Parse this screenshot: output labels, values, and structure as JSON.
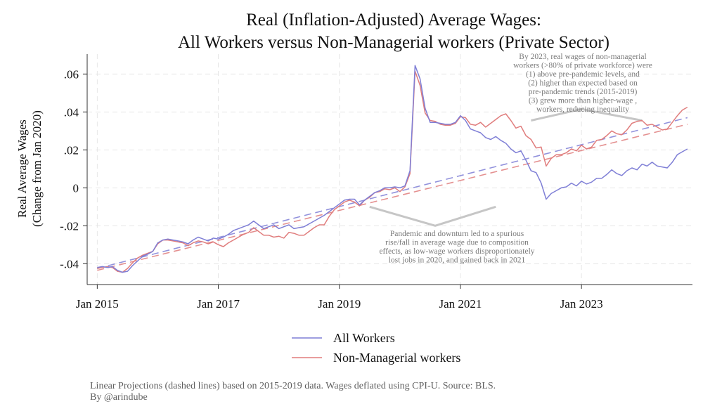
{
  "chart_data": {
    "type": "line",
    "title_lines": [
      "Real (Inflation-Adjusted) Average Wages:",
      "All Workers versus Non-Managerial workers (Private Sector)"
    ],
    "ylabel_lines": [
      "Real Average Wages",
      "(Change from Jan 2020)"
    ],
    "x_ticks": [
      "Jan 2015",
      "Jan 2017",
      "Jan 2019",
      "Jan 2021",
      "Jan 2023"
    ],
    "y_ticks": [
      ".06",
      ".04",
      ".02",
      "0",
      "-.02",
      "-.04"
    ],
    "xlim": [
      "2014-11",
      "2024-11"
    ],
    "ylim": [
      -0.051,
      0.0705
    ],
    "grid": true,
    "series": [
      {
        "name": "All Workers",
        "color": "#7f7fd6",
        "points": [
          [
            "2015-01",
            -0.042
          ],
          [
            "2015-02",
            -0.0415
          ],
          [
            "2015-03",
            -0.042
          ],
          [
            "2015-04",
            -0.0415
          ],
          [
            "2015-05",
            -0.0435
          ],
          [
            "2015-06",
            -0.0445
          ],
          [
            "2015-07",
            -0.044
          ],
          [
            "2015-08",
            -0.041
          ],
          [
            "2015-09",
            -0.0385
          ],
          [
            "2015-10",
            -0.036
          ],
          [
            "2015-11",
            -0.035
          ],
          [
            "2015-12",
            -0.0335
          ],
          [
            "2016-01",
            -0.029
          ],
          [
            "2016-02",
            -0.0275
          ],
          [
            "2016-03",
            -0.027
          ],
          [
            "2016-04",
            -0.0275
          ],
          [
            "2016-05",
            -0.028
          ],
          [
            "2016-06",
            -0.0285
          ],
          [
            "2016-07",
            -0.0295
          ],
          [
            "2016-08",
            -0.0275
          ],
          [
            "2016-09",
            -0.026
          ],
          [
            "2016-10",
            -0.027
          ],
          [
            "2016-11",
            -0.028
          ],
          [
            "2016-12",
            -0.0265
          ],
          [
            "2017-01",
            -0.027
          ],
          [
            "2017-02",
            -0.026
          ],
          [
            "2017-03",
            -0.0245
          ],
          [
            "2017-04",
            -0.0225
          ],
          [
            "2017-05",
            -0.0215
          ],
          [
            "2017-06",
            -0.0205
          ],
          [
            "2017-07",
            -0.0195
          ],
          [
            "2017-08",
            -0.0175
          ],
          [
            "2017-09",
            -0.0195
          ],
          [
            "2017-10",
            -0.0215
          ],
          [
            "2017-11",
            -0.0205
          ],
          [
            "2017-12",
            -0.0195
          ],
          [
            "2018-01",
            -0.0215
          ],
          [
            "2018-02",
            -0.0205
          ],
          [
            "2018-03",
            -0.0195
          ],
          [
            "2018-04",
            -0.0215
          ],
          [
            "2018-05",
            -0.021
          ],
          [
            "2018-06",
            -0.0205
          ],
          [
            "2018-07",
            -0.019
          ],
          [
            "2018-08",
            -0.0175
          ],
          [
            "2018-09",
            -0.016
          ],
          [
            "2018-10",
            -0.0145
          ],
          [
            "2018-11",
            -0.0125
          ],
          [
            "2018-12",
            -0.0105
          ],
          [
            "2019-01",
            -0.0085
          ],
          [
            "2019-02",
            -0.0065
          ],
          [
            "2019-03",
            -0.006
          ],
          [
            "2019-04",
            -0.006
          ],
          [
            "2019-05",
            -0.009
          ],
          [
            "2019-06",
            -0.0065
          ],
          [
            "2019-07",
            -0.0045
          ],
          [
            "2019-08",
            -0.0025
          ],
          [
            "2019-09",
            -0.0015
          ],
          [
            "2019-10",
            0.0
          ],
          [
            "2019-11",
            0.0
          ],
          [
            "2019-12",
            0.0005
          ],
          [
            "2020-01",
            0.0
          ],
          [
            "2020-02",
            0.001
          ],
          [
            "2020-03",
            0.009
          ],
          [
            "2020-04",
            0.0645
          ],
          [
            "2020-05",
            0.0575
          ],
          [
            "2020-06",
            0.042
          ],
          [
            "2020-07",
            0.0345
          ],
          [
            "2020-08",
            0.0345
          ],
          [
            "2020-09",
            0.034
          ],
          [
            "2020-10",
            0.0335
          ],
          [
            "2020-11",
            0.0335
          ],
          [
            "2020-12",
            0.0345
          ],
          [
            "2021-01",
            0.038
          ],
          [
            "2021-02",
            0.0355
          ],
          [
            "2021-03",
            0.031
          ],
          [
            "2021-04",
            0.03
          ],
          [
            "2021-05",
            0.029
          ],
          [
            "2021-06",
            0.0265
          ],
          [
            "2021-07",
            0.0255
          ],
          [
            "2021-08",
            0.027
          ],
          [
            "2021-09",
            0.025
          ],
          [
            "2021-10",
            0.0235
          ],
          [
            "2021-11",
            0.0205
          ],
          [
            "2021-12",
            0.0185
          ],
          [
            "2022-01",
            0.0195
          ],
          [
            "2022-02",
            0.0145
          ],
          [
            "2022-03",
            0.009
          ],
          [
            "2022-04",
            0.008
          ],
          [
            "2022-05",
            0.0025
          ],
          [
            "2022-06",
            -0.006
          ],
          [
            "2022-07",
            -0.003
          ],
          [
            "2022-08",
            -0.0015
          ],
          [
            "2022-09",
            0.0
          ],
          [
            "2022-10",
            0.0005
          ],
          [
            "2022-11",
            0.0025
          ],
          [
            "2022-12",
            0.001
          ],
          [
            "2023-01",
            0.0035
          ],
          [
            "2023-02",
            0.002
          ],
          [
            "2023-03",
            0.003
          ],
          [
            "2023-04",
            0.005
          ],
          [
            "2023-05",
            0.005
          ],
          [
            "2023-06",
            0.007
          ],
          [
            "2023-07",
            0.0095
          ],
          [
            "2023-08",
            0.0075
          ],
          [
            "2023-09",
            0.0065
          ],
          [
            "2023-10",
            0.009
          ],
          [
            "2023-11",
            0.0105
          ],
          [
            "2023-12",
            0.0095
          ],
          [
            "2024-01",
            0.0125
          ],
          [
            "2024-02",
            0.0115
          ],
          [
            "2024-03",
            0.0135
          ],
          [
            "2024-04",
            0.0115
          ],
          [
            "2024-05",
            0.011
          ],
          [
            "2024-06",
            0.0105
          ],
          [
            "2024-07",
            0.0135
          ],
          [
            "2024-08",
            0.0175
          ],
          [
            "2024-09",
            0.019
          ],
          [
            "2024-10",
            0.0205
          ]
        ],
        "projection": [
          [
            "2015-01",
            -0.0425
          ],
          [
            "2024-10",
            0.037
          ]
        ]
      },
      {
        "name": "Non-Managerial workers",
        "color": "#e07d7d",
        "points": [
          [
            "2015-01",
            -0.0425
          ],
          [
            "2015-02",
            -0.042
          ],
          [
            "2015-03",
            -0.0415
          ],
          [
            "2015-04",
            -0.042
          ],
          [
            "2015-05",
            -0.044
          ],
          [
            "2015-06",
            -0.0445
          ],
          [
            "2015-07",
            -0.0425
          ],
          [
            "2015-08",
            -0.0395
          ],
          [
            "2015-09",
            -0.037
          ],
          [
            "2015-10",
            -0.0355
          ],
          [
            "2015-11",
            -0.0345
          ],
          [
            "2015-12",
            -0.0335
          ],
          [
            "2016-01",
            -0.0295
          ],
          [
            "2016-02",
            -0.0275
          ],
          [
            "2016-03",
            -0.0275
          ],
          [
            "2016-04",
            -0.028
          ],
          [
            "2016-05",
            -0.0285
          ],
          [
            "2016-06",
            -0.029
          ],
          [
            "2016-07",
            -0.0305
          ],
          [
            "2016-08",
            -0.029
          ],
          [
            "2016-09",
            -0.028
          ],
          [
            "2016-10",
            -0.0285
          ],
          [
            "2016-11",
            -0.0295
          ],
          [
            "2016-12",
            -0.0285
          ],
          [
            "2017-01",
            -0.03
          ],
          [
            "2017-02",
            -0.031
          ],
          [
            "2017-03",
            -0.029
          ],
          [
            "2017-04",
            -0.0275
          ],
          [
            "2017-05",
            -0.026
          ],
          [
            "2017-06",
            -0.0245
          ],
          [
            "2017-07",
            -0.0235
          ],
          [
            "2017-08",
            -0.021
          ],
          [
            "2017-09",
            -0.023
          ],
          [
            "2017-10",
            -0.025
          ],
          [
            "2017-11",
            -0.025
          ],
          [
            "2017-12",
            -0.026
          ],
          [
            "2018-01",
            -0.0255
          ],
          [
            "2018-02",
            -0.0265
          ],
          [
            "2018-03",
            -0.0235
          ],
          [
            "2018-04",
            -0.024
          ],
          [
            "2018-05",
            -0.025
          ],
          [
            "2018-06",
            -0.025
          ],
          [
            "2018-07",
            -0.023
          ],
          [
            "2018-08",
            -0.021
          ],
          [
            "2018-09",
            -0.0195
          ],
          [
            "2018-10",
            -0.0195
          ],
          [
            "2018-11",
            -0.015
          ],
          [
            "2018-12",
            -0.0115
          ],
          [
            "2019-01",
            -0.0095
          ],
          [
            "2019-02",
            -0.0075
          ],
          [
            "2019-03",
            -0.0065
          ],
          [
            "2019-04",
            -0.0075
          ],
          [
            "2019-05",
            -0.0095
          ],
          [
            "2019-06",
            -0.0065
          ],
          [
            "2019-07",
            -0.005
          ],
          [
            "2019-08",
            -0.0025
          ],
          [
            "2019-09",
            -0.002
          ],
          [
            "2019-10",
            -0.0005
          ],
          [
            "2019-11",
            -0.001
          ],
          [
            "2019-12",
            0.0
          ],
          [
            "2020-01",
            -0.002
          ],
          [
            "2020-02",
            0.0005
          ],
          [
            "2020-03",
            0.0075
          ],
          [
            "2020-04",
            0.0615
          ],
          [
            "2020-05",
            0.054
          ],
          [
            "2020-06",
            0.0395
          ],
          [
            "2020-07",
            0.0355
          ],
          [
            "2020-08",
            0.035
          ],
          [
            "2020-09",
            0.0335
          ],
          [
            "2020-10",
            0.033
          ],
          [
            "2020-11",
            0.033
          ],
          [
            "2020-12",
            0.034
          ],
          [
            "2021-01",
            0.0375
          ],
          [
            "2021-02",
            0.037
          ],
          [
            "2021-03",
            0.0335
          ],
          [
            "2021-04",
            0.033
          ],
          [
            "2021-05",
            0.0345
          ],
          [
            "2021-06",
            0.032
          ],
          [
            "2021-07",
            0.034
          ],
          [
            "2021-08",
            0.036
          ],
          [
            "2021-09",
            0.038
          ],
          [
            "2021-10",
            0.039
          ],
          [
            "2021-11",
            0.0355
          ],
          [
            "2021-12",
            0.0315
          ],
          [
            "2022-01",
            0.0325
          ],
          [
            "2022-02",
            0.0275
          ],
          [
            "2022-03",
            0.0255
          ],
          [
            "2022-04",
            0.021
          ],
          [
            "2022-05",
            0.0215
          ],
          [
            "2022-06",
            0.0115
          ],
          [
            "2022-07",
            0.0155
          ],
          [
            "2022-08",
            0.0175
          ],
          [
            "2022-09",
            0.0175
          ],
          [
            "2022-10",
            0.0185
          ],
          [
            "2022-11",
            0.0205
          ],
          [
            "2022-12",
            0.0195
          ],
          [
            "2023-01",
            0.0225
          ],
          [
            "2023-02",
            0.0205
          ],
          [
            "2023-03",
            0.0215
          ],
          [
            "2023-04",
            0.025
          ],
          [
            "2023-05",
            0.0255
          ],
          [
            "2023-06",
            0.0275
          ],
          [
            "2023-07",
            0.03
          ],
          [
            "2023-08",
            0.0285
          ],
          [
            "2023-09",
            0.028
          ],
          [
            "2023-10",
            0.0305
          ],
          [
            "2023-11",
            0.034
          ],
          [
            "2023-12",
            0.035
          ],
          [
            "2024-01",
            0.0355
          ],
          [
            "2024-02",
            0.033
          ],
          [
            "2024-03",
            0.0335
          ],
          [
            "2024-04",
            0.032
          ],
          [
            "2024-05",
            0.0305
          ],
          [
            "2024-06",
            0.031
          ],
          [
            "2024-07",
            0.0345
          ],
          [
            "2024-08",
            0.038
          ],
          [
            "2024-09",
            0.041
          ],
          [
            "2024-10",
            0.0425
          ]
        ],
        "projection": [
          [
            "2015-01",
            -0.0435
          ],
          [
            "2024-10",
            0.0335
          ]
        ]
      }
    ],
    "annotations": [
      {
        "lines": [
          "By 2023, real wages of non-managerial",
          "workers (>80% of private workforce) were",
          "(1) above pre-pandemic levels, and",
          "(2) higher than expected based on",
          "pre-pandemic trends (2015-2019)",
          "(3) grew more than higher-wage ,",
          "workers, reducing inequality"
        ],
        "bracket": [
          [
            "2022-03",
            0.0355
          ],
          [
            "2023-01",
            0.0415
          ],
          [
            "2024-01",
            0.0355
          ]
        ]
      },
      {
        "lines": [
          "Pandemic and downturn led to a spurious",
          "rise/fall in average wage due to composition",
          "effects, as low-wage workers disproportionately",
          "lost jobs in 2020, and gained back in 2021"
        ],
        "bracket": [
          [
            "2019-07",
            -0.01
          ],
          [
            "2020-08",
            -0.02
          ],
          [
            "2021-08",
            -0.01
          ]
        ]
      }
    ],
    "legend_position": "bottom",
    "footnote_lines": [
      "Linear Projections (dashed lines) based on 2015-2019 data. Wages deflated using CPI-U. Source: BLS.",
      "By @arindube"
    ]
  }
}
